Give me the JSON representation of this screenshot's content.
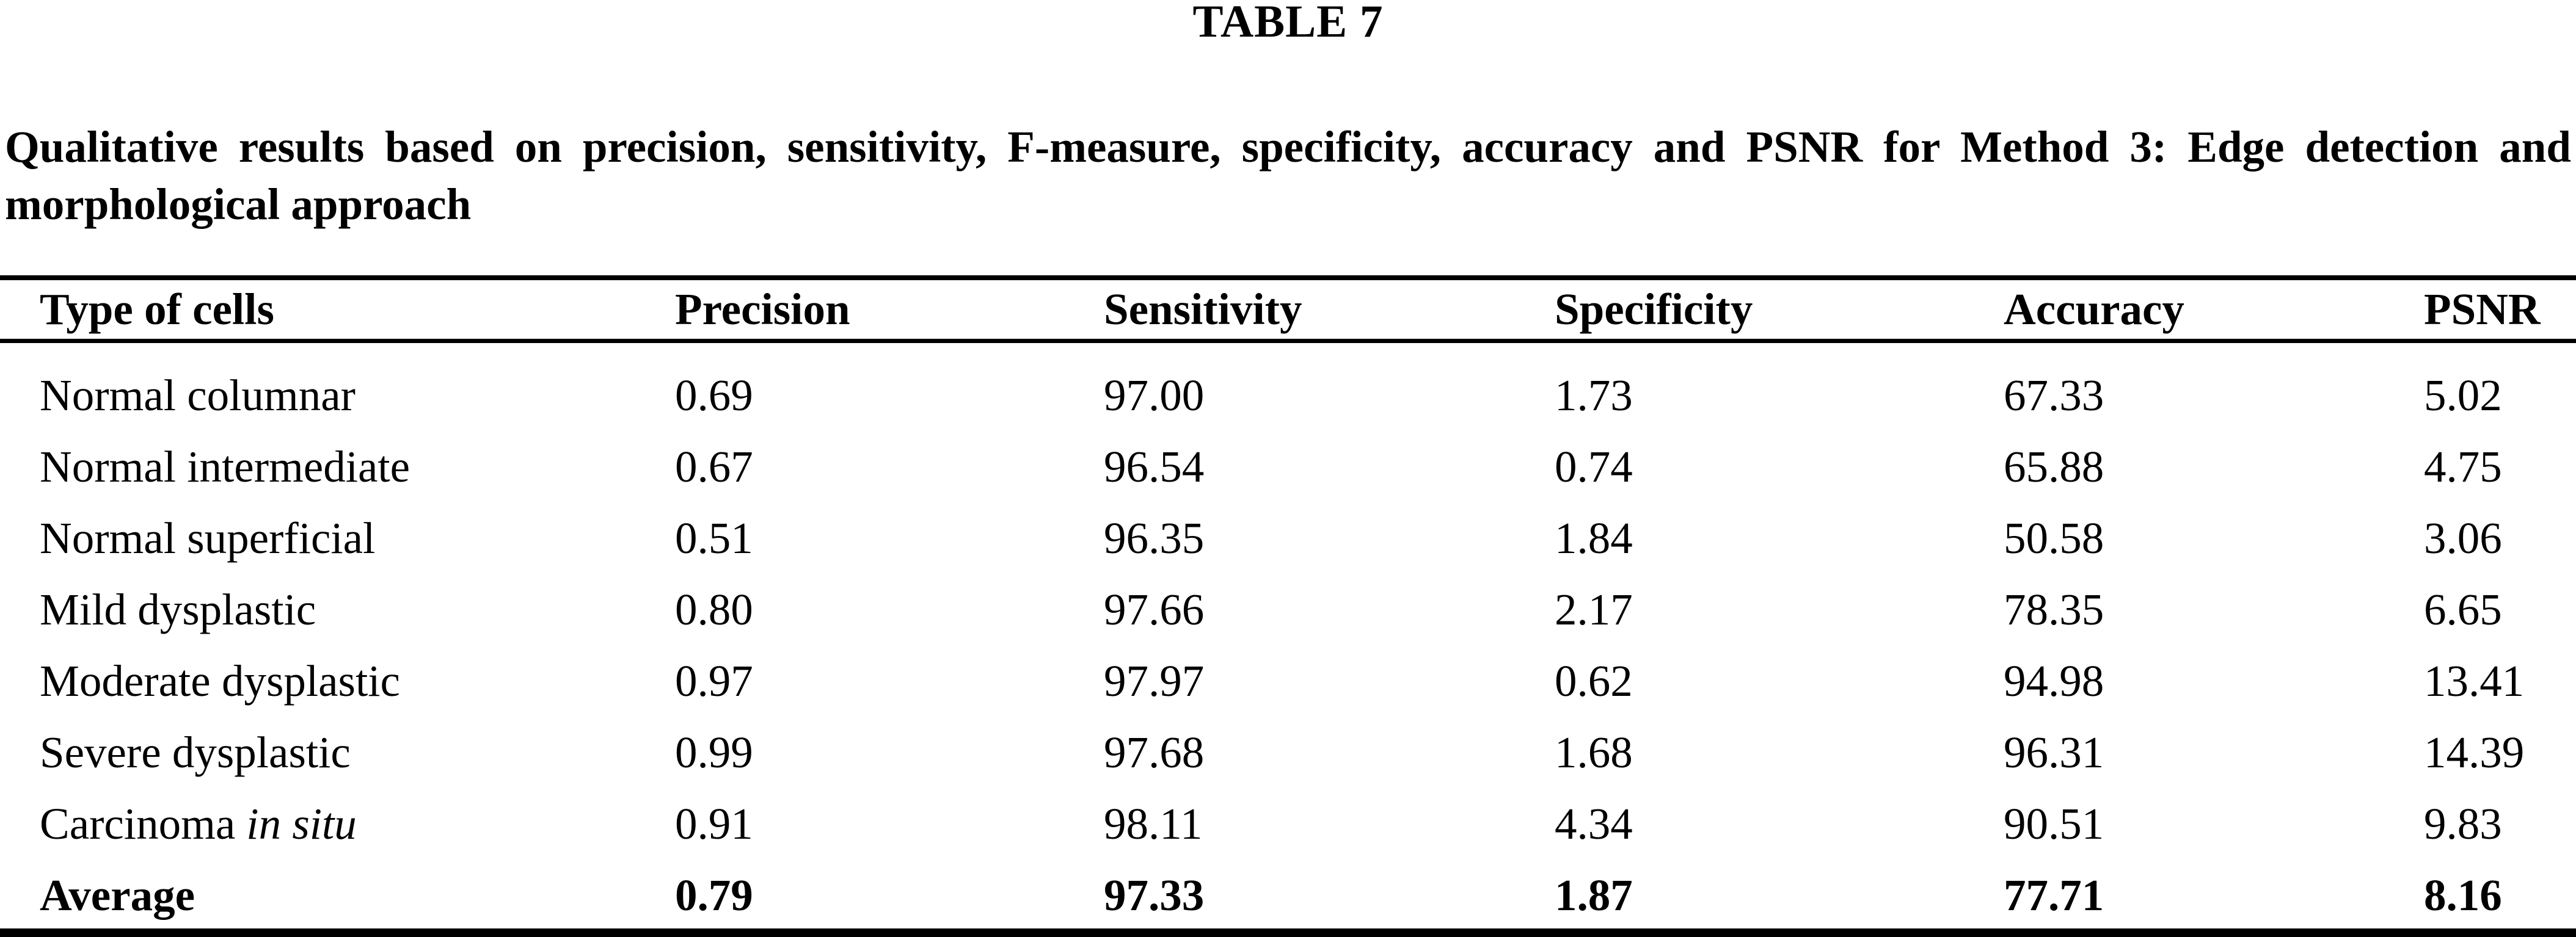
{
  "title": "TABLE 7",
  "caption": {
    "full": "Qualitative results based on precision, sensitivity, F-measure, specificity, accuracy and PSNR for Method 3: Edge detection and morphological approach",
    "line1": "Qualitative results based on precision, sensitivity, F-measure, specificity, accuracy and PSNR for Method 3: Edge detection and",
    "line2": "morphological approach"
  },
  "table": {
    "headers": [
      "Type of cells",
      "Precision",
      "Sensitivity",
      "Specificity",
      "Accuracy",
      "PSNR"
    ],
    "rows": [
      [
        "Normal columnar",
        "0.69",
        "97.00",
        "1.73",
        "67.33",
        "5.02"
      ],
      [
        "Normal intermediate",
        "0.67",
        "96.54",
        "0.74",
        "65.88",
        "4.75"
      ],
      [
        "Normal superficial",
        "0.51",
        "96.35",
        "1.84",
        "50.58",
        "3.06"
      ],
      [
        "Mild dysplastic",
        "0.80",
        "97.66",
        "2.17",
        "78.35",
        "6.65"
      ],
      [
        "Moderate dysplastic",
        "0.97",
        "97.97",
        "0.62",
        "94.98",
        "13.41"
      ],
      [
        "Severe dysplastic",
        "0.99",
        "97.68",
        "1.68",
        "96.31",
        "14.39"
      ],
      [
        "Carcinoma in situ",
        "0.91",
        "98.11",
        "4.34",
        "90.51",
        "9.83"
      ]
    ],
    "carcinoma_name": {
      "roman": "Carcinoma",
      "italic": "in situ"
    },
    "average_row": [
      "Average",
      "0.79",
      "97.33",
      "1.87",
      "77.71",
      "8.16"
    ]
  },
  "chart_data": {
    "type": "table",
    "title": "TABLE 7",
    "caption": "Qualitative results based on precision, sensitivity, F-measure, specificity, accuracy and PSNR for Method 3: Edge detection and morphological approach",
    "columns": [
      "Type of cells",
      "Precision",
      "Sensitivity",
      "Specificity",
      "Accuracy",
      "PSNR"
    ],
    "rows": [
      {
        "type_of_cells": "Normal columnar",
        "precision": 0.69,
        "sensitivity": 97.0,
        "specificity": 1.73,
        "accuracy": 67.33,
        "psnr": 5.02
      },
      {
        "type_of_cells": "Normal intermediate",
        "precision": 0.67,
        "sensitivity": 96.54,
        "specificity": 0.74,
        "accuracy": 65.88,
        "psnr": 4.75
      },
      {
        "type_of_cells": "Normal superficial",
        "precision": 0.51,
        "sensitivity": 96.35,
        "specificity": 1.84,
        "accuracy": 50.58,
        "psnr": 3.06
      },
      {
        "type_of_cells": "Mild dysplastic",
        "precision": 0.8,
        "sensitivity": 97.66,
        "specificity": 2.17,
        "accuracy": 78.35,
        "psnr": 6.65
      },
      {
        "type_of_cells": "Moderate dysplastic",
        "precision": 0.97,
        "sensitivity": 97.97,
        "specificity": 0.62,
        "accuracy": 94.98,
        "psnr": 13.41
      },
      {
        "type_of_cells": "Severe dysplastic",
        "precision": 0.99,
        "sensitivity": 97.68,
        "specificity": 1.68,
        "accuracy": 96.31,
        "psnr": 14.39
      },
      {
        "type_of_cells": "Carcinoma in situ",
        "precision": 0.91,
        "sensitivity": 98.11,
        "specificity": 4.34,
        "accuracy": 90.51,
        "psnr": 9.83
      },
      {
        "type_of_cells": "Average",
        "precision": 0.79,
        "sensitivity": 97.33,
        "specificity": 1.87,
        "accuracy": 77.71,
        "psnr": 8.16
      }
    ]
  },
  "colors": {
    "text": "#000000",
    "background": "#ffffff",
    "rule": "#000000"
  }
}
